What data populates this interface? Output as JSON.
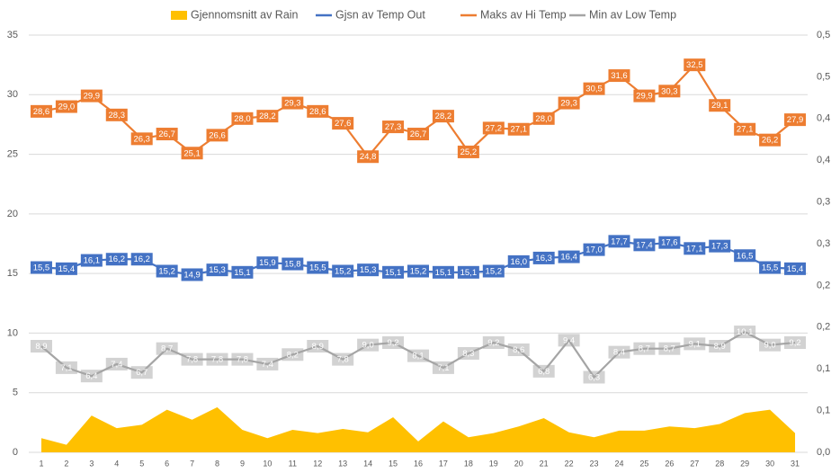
{
  "chart_data": {
    "type": "combo",
    "categories": [
      "1",
      "2",
      "3",
      "4",
      "5",
      "6",
      "7",
      "8",
      "9",
      "10",
      "11",
      "12",
      "13",
      "14",
      "15",
      "16",
      "17",
      "18",
      "19",
      "20",
      "21",
      "22",
      "23",
      "24",
      "25",
      "26",
      "27",
      "28",
      "29",
      "30",
      "31"
    ],
    "ylim": [
      0,
      35
    ],
    "yticks": [
      0,
      5,
      10,
      15,
      20,
      25,
      30,
      35
    ],
    "y2lim": [
      0,
      0.5
    ],
    "y2ticks": [
      {
        "value": 0,
        "label": "0,0"
      },
      {
        "value": 0.05,
        "label": "0,1"
      },
      {
        "value": 0.1,
        "label": "0,1"
      },
      {
        "value": 0.15,
        "label": "0,2"
      },
      {
        "value": 0.2,
        "label": "0,2"
      },
      {
        "value": 0.25,
        "label": "0,3"
      },
      {
        "value": 0.3,
        "label": "0,3"
      },
      {
        "value": 0.35,
        "label": "0,4"
      },
      {
        "value": 0.4,
        "label": "0,4"
      },
      {
        "value": 0.45,
        "label": "0,5"
      },
      {
        "value": 0.5,
        "label": "0,5"
      }
    ],
    "grid": true,
    "legend": "top",
    "series": [
      {
        "name": "Gjennomsnitt av Rain",
        "type": "area",
        "axis": "y2",
        "color": "#ffc000",
        "values": [
          0.017,
          0.009,
          0.044,
          0.029,
          0.033,
          0.051,
          0.039,
          0.054,
          0.027,
          0.017,
          0.027,
          0.023,
          0.028,
          0.024,
          0.042,
          0.013,
          0.037,
          0.018,
          0.023,
          0.031,
          0.041,
          0.024,
          0.018,
          0.026,
          0.026,
          0.031,
          0.029,
          0.034,
          0.047,
          0.051,
          0.023
        ]
      },
      {
        "name": "Gjsn av Temp Out",
        "type": "line",
        "color": "#4472c4",
        "values": [
          15.5,
          15.4,
          16.1,
          16.2,
          16.2,
          15.2,
          14.9,
          15.3,
          15.1,
          15.9,
          15.8,
          15.5,
          15.2,
          15.3,
          15.1,
          15.2,
          15.1,
          15.1,
          15.2,
          16.0,
          16.3,
          16.4,
          17.0,
          17.7,
          17.4,
          17.6,
          17.1,
          17.3,
          16.5,
          15.5,
          15.4
        ],
        "value_labels": [
          "15,5",
          "15,4",
          "16,1",
          "16,2",
          "16,2",
          "15,2",
          "14,9",
          "15,3",
          "15,1",
          "15,9",
          "15,8",
          "15,5",
          "15,2",
          "15,3",
          "15,1",
          "15,2",
          "15,1",
          "15,1",
          "15,2",
          "16,0",
          "16,3",
          "16,4",
          "17,0",
          "17,7",
          "17,4",
          "17,6",
          "17,1",
          "17,3",
          "16,5",
          "15,5",
          "15,4"
        ]
      },
      {
        "name": "Maks av Hi Temp",
        "type": "line",
        "color": "#ed7d31",
        "values": [
          28.6,
          29.0,
          29.9,
          28.3,
          26.3,
          26.7,
          25.1,
          26.6,
          28.0,
          28.2,
          29.3,
          28.6,
          27.6,
          24.8,
          27.3,
          26.7,
          28.2,
          25.2,
          27.2,
          27.1,
          28.0,
          29.3,
          30.5,
          31.6,
          29.9,
          30.3,
          32.5,
          29.1,
          27.1,
          26.2,
          27.9
        ],
        "value_labels": [
          "28,6",
          "29,0",
          "29,9",
          "28,3",
          "26,3",
          "26,7",
          "25,1",
          "26,6",
          "28,0",
          "28,2",
          "29,3",
          "28,6",
          "27,6",
          "24,8",
          "27,3",
          "26,7",
          "28,2",
          "25,2",
          "27,2",
          "27,1",
          "28,0",
          "29,3",
          "30,5",
          "31,6",
          "29,9",
          "30,3",
          "32,5",
          "29,1",
          "27,1",
          "26,2",
          "27,9"
        ]
      },
      {
        "name": "Min av Low Temp",
        "type": "line",
        "color": "#a5a5a5",
        "values": [
          8.9,
          7.1,
          6.4,
          7.4,
          6.7,
          8.7,
          7.8,
          7.8,
          7.8,
          7.4,
          8.2,
          8.9,
          7.8,
          9.0,
          9.2,
          8.1,
          7.1,
          8.3,
          9.2,
          8.6,
          6.8,
          9.4,
          6.3,
          8.4,
          8.7,
          8.7,
          9.1,
          8.9,
          10.1,
          9.0,
          9.2
        ],
        "value_labels": [
          "8,9",
          "7,1",
          "6,4",
          "7,4",
          "6,7",
          "8,7",
          "7,8",
          "7,8",
          "7,8",
          "7,4",
          "8,2",
          "8,9",
          "7,8",
          "9,0",
          "9,2",
          "8,1",
          "7,1",
          "8,3",
          "9,2",
          "8,6",
          "6,8",
          "9,4",
          "6,3",
          "8,4",
          "8,7",
          "8,7",
          "9,1",
          "8,9",
          "10,1",
          "9,0",
          "9,2"
        ]
      }
    ]
  }
}
